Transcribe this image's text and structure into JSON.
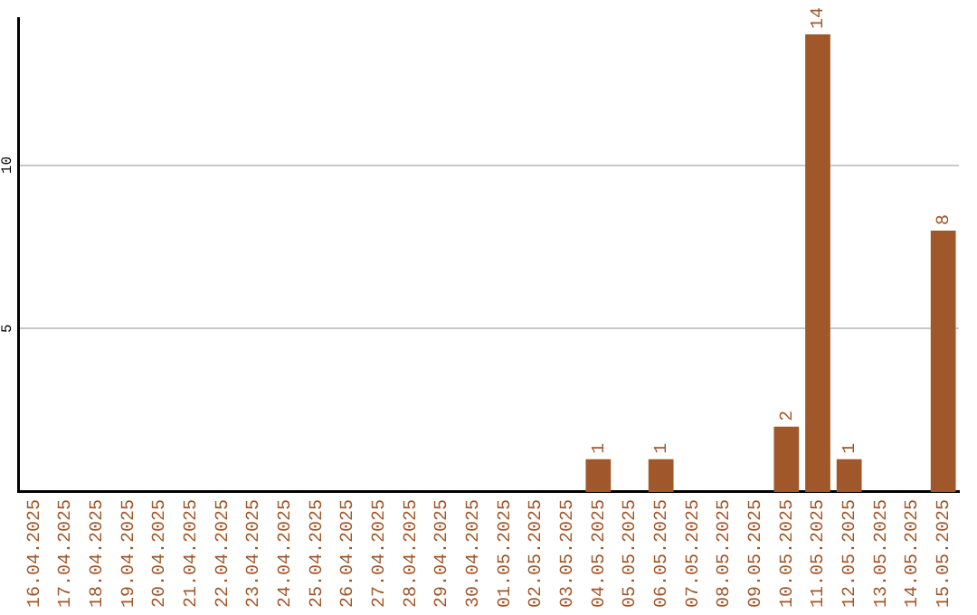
{
  "chart_data": {
    "type": "bar",
    "categories": [
      "16.04.2025",
      "17.04.2025",
      "18.04.2025",
      "19.04.2025",
      "20.04.2025",
      "21.04.2025",
      "22.04.2025",
      "23.04.2025",
      "24.04.2025",
      "25.04.2025",
      "26.04.2025",
      "27.04.2025",
      "28.04.2025",
      "29.04.2025",
      "30.04.2025",
      "01.05.2025",
      "02.05.2025",
      "03.05.2025",
      "04.05.2025",
      "05.05.2025",
      "06.05.2025",
      "07.05.2025",
      "08.05.2025",
      "09.05.2025",
      "10.05.2025",
      "11.05.2025",
      "12.05.2025",
      "13.05.2025",
      "14.05.2025",
      "15.05.2025"
    ],
    "values": [
      0,
      0,
      0,
      0,
      0,
      0,
      0,
      0,
      0,
      0,
      0,
      0,
      0,
      0,
      0,
      0,
      0,
      0,
      1,
      0,
      1,
      0,
      0,
      0,
      2,
      14,
      1,
      0,
      0,
      8
    ],
    "value_labels": [
      null,
      null,
      null,
      null,
      null,
      null,
      null,
      null,
      null,
      null,
      null,
      null,
      null,
      null,
      null,
      null,
      null,
      null,
      "1",
      null,
      "1",
      null,
      null,
      null,
      "2",
      "14",
      "1",
      null,
      null,
      "8"
    ],
    "color": "#a0572a",
    "ylim": [
      0,
      14.5
    ],
    "yticks": [
      5,
      10
    ],
    "grid": "y"
  }
}
